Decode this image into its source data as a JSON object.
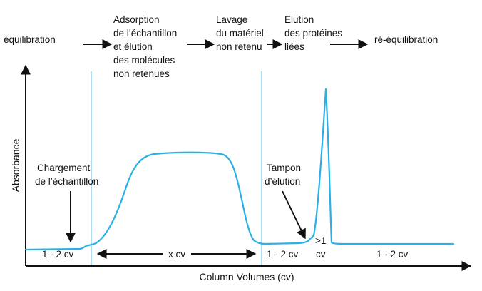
{
  "colors": {
    "curve": "#2ab0e6",
    "divider": "#a9def3",
    "ink": "#111111",
    "background": "#ffffff"
  },
  "stages": [
    {
      "id": "equilibration",
      "lines": [
        "équilibration"
      ]
    },
    {
      "id": "adsorption",
      "lines": [
        "Adsorption",
        "de l’échantillon",
        "et élution",
        "des molécules",
        "non retenues"
      ]
    },
    {
      "id": "lavage",
      "lines": [
        "Lavage",
        "du matériel",
        "non retenu"
      ]
    },
    {
      "id": "elution",
      "lines": [
        "Elution",
        "des protéines",
        "liées"
      ]
    },
    {
      "id": "reequilibration",
      "lines": [
        "ré-équilibration"
      ]
    }
  ],
  "chart": {
    "x_axis_label": "Column Volumes (cv)",
    "y_axis_label": "Absorbance",
    "annotations": {
      "sample_loading": [
        "Chargement",
        "de l’échantillon"
      ],
      "elution_buffer": [
        "Tampon",
        "d’élution"
      ]
    },
    "segment_labels": {
      "seg1": "1 - 2 cv",
      "seg2": "x cv",
      "seg3": "1 - 2 cv",
      "seg4_top": ">1",
      "seg4_bottom": "cv",
      "seg5": "1 - 2 cv"
    }
  }
}
